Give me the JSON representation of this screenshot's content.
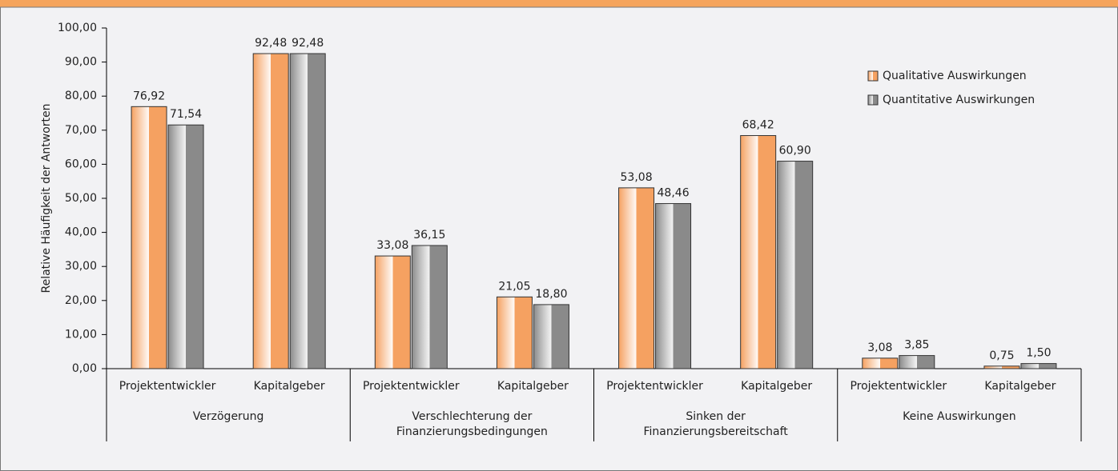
{
  "chart_data": {
    "type": "bar",
    "y_label": "Relative Häufigkeit der Antworten",
    "categories": [
      "Projektentwickler",
      "Kapitalgeber",
      "Projektentwickler",
      "Kapitalgeber",
      "Projektentwickler",
      "Kapitalgeber",
      "Projektentwickler",
      "Kapitalgeber"
    ],
    "groups": [
      [
        "Verzögerung"
      ],
      [
        "Verschlechterung der",
        "Finanzierungsbedingungen"
      ],
      [
        "Sinken der",
        "Finanzierungsbereitschaft"
      ],
      [
        "Keine Auswirkungen"
      ]
    ],
    "series": [
      {
        "name": "Qualitative Auswirkungen",
        "color": "#f5a161",
        "values": [
          76.92,
          92.48,
          33.08,
          21.05,
          53.08,
          68.42,
          3.08,
          0.75
        ],
        "value_labels": [
          "76,92",
          "92,48",
          "33,08",
          "21,05",
          "53,08",
          "68,42",
          "3,08",
          "0,75"
        ]
      },
      {
        "name": "Quantitative Auswirkungen",
        "color": "#8a8a8a",
        "values": [
          71.54,
          92.48,
          36.15,
          18.8,
          48.46,
          60.9,
          3.85,
          1.5
        ],
        "value_labels": [
          "71,54",
          "92,48",
          "36,15",
          "18,80",
          "48,46",
          "60,90",
          "3,85",
          "1,50"
        ]
      }
    ],
    "ylim": [
      0,
      100
    ],
    "yticks": [
      {
        "value": 0,
        "label": "0,00"
      },
      {
        "value": 10,
        "label": "10,00"
      },
      {
        "value": 20,
        "label": "20,00"
      },
      {
        "value": 30,
        "label": "30,00"
      },
      {
        "value": 40,
        "label": "40,00"
      },
      {
        "value": 50,
        "label": "50,00"
      },
      {
        "value": 60,
        "label": "60,00"
      },
      {
        "value": 70,
        "label": "70,00"
      },
      {
        "value": 80,
        "label": "80,00"
      },
      {
        "value": 90,
        "label": "90,00"
      },
      {
        "value": 100,
        "label": "100,00"
      }
    ],
    "legend": "upper right"
  }
}
